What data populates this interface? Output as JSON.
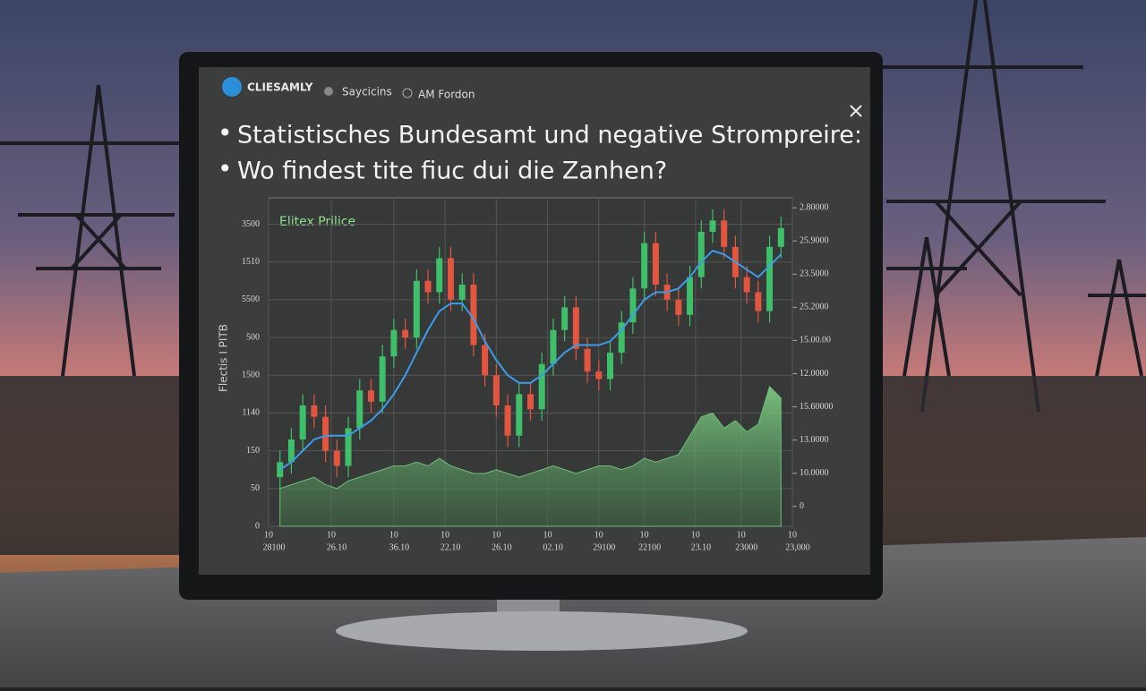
{
  "header": {
    "logo": "CLIESAMLY",
    "tabs": [
      "Saycicins",
      "AM Fordon"
    ],
    "title_lines": [
      "Statistisches Bundesamt und negative Strompreire:",
      "Wo findest tite fiuc dui die Zanhen?"
    ]
  },
  "chart_data": {
    "type": "candlestick",
    "legend": "Elitex Prilice",
    "y_label": "Flectis I PITB",
    "xlim": [
      0,
      46
    ],
    "xticks": [
      {
        "value": 0,
        "label": "10"
      },
      {
        "value": 5.5,
        "label": "10"
      },
      {
        "value": 11,
        "label": "10"
      },
      {
        "value": 15.5,
        "label": "10"
      },
      {
        "value": 20,
        "label": "10"
      },
      {
        "value": 24.5,
        "label": "10"
      },
      {
        "value": 29,
        "label": "10"
      },
      {
        "value": 33,
        "label": "10"
      },
      {
        "value": 37.5,
        "label": "10"
      },
      {
        "value": 41.5,
        "label": "10"
      },
      {
        "value": 46,
        "label": "10"
      }
    ],
    "xtick_sublabels": [
      "28100",
      "26.10",
      "36.10",
      "22.10",
      "26.10",
      "02.10",
      "29100",
      "22100",
      "23.10",
      "23000",
      "23,000"
    ],
    "ylim": [
      0,
      8.7
    ],
    "yticks": [
      {
        "value": 0,
        "label": "0"
      },
      {
        "value": 1,
        "label": "50"
      },
      {
        "value": 2,
        "label": "150"
      },
      {
        "value": 3,
        "label": "1140"
      },
      {
        "value": 4,
        "label": "1500"
      },
      {
        "value": 5,
        "label": "500"
      },
      {
        "value": 6,
        "label": "5500"
      },
      {
        "value": 7,
        "label": "1510"
      },
      {
        "value": 8,
        "label": "3500"
      }
    ],
    "y2lim": [
      -0.6,
      9.3
    ],
    "y2ticks": [
      {
        "value": 0,
        "label": "0"
      },
      {
        "value": 1,
        "label": "10.0000"
      },
      {
        "value": 2,
        "label": "13.0000"
      },
      {
        "value": 3,
        "label": "15.60000"
      },
      {
        "value": 4,
        "label": "12.0000"
      },
      {
        "value": 5,
        "label": "15.00.00"
      },
      {
        "value": 6,
        "label": "25.2000"
      },
      {
        "value": 7,
        "label": "23.5000"
      },
      {
        "value": 8,
        "label": "25.9000"
      },
      {
        "value": 9,
        "label": "2.80000"
      }
    ],
    "grid": true,
    "x": [
      1,
      2,
      3,
      4,
      5,
      6,
      7,
      8,
      9,
      10,
      11,
      12,
      13,
      14,
      15,
      16,
      17,
      18,
      19,
      20,
      21,
      22,
      23,
      24,
      25,
      26,
      27,
      28,
      29,
      30,
      31,
      32,
      33,
      34,
      35,
      36,
      37,
      38,
      39,
      40,
      41,
      42,
      43,
      44,
      45
    ],
    "open": [
      1.3,
      1.7,
      2.3,
      3.2,
      2.9,
      2.0,
      1.6,
      2.6,
      3.6,
      3.3,
      4.5,
      5.2,
      5.0,
      6.5,
      6.2,
      7.1,
      6.0,
      6.4,
      4.8,
      4.0,
      3.2,
      2.4,
      3.5,
      3.1,
      4.3,
      5.2,
      5.8,
      4.7,
      4.1,
      3.9,
      4.6,
      5.4,
      6.3,
      7.5,
      6.4,
      6.0,
      5.6,
      6.6,
      7.8,
      8.1,
      7.4,
      6.6,
      6.2,
      5.7,
      7.4
    ],
    "close": [
      1.7,
      2.3,
      3.2,
      2.9,
      2.0,
      1.6,
      2.6,
      3.6,
      3.3,
      4.5,
      5.2,
      5.0,
      6.5,
      6.2,
      7.1,
      6.0,
      6.4,
      4.8,
      4.0,
      3.2,
      2.4,
      3.5,
      3.1,
      4.3,
      5.2,
      5.8,
      4.7,
      4.1,
      3.9,
      4.6,
      5.4,
      6.3,
      7.5,
      6.4,
      6.0,
      5.6,
      6.6,
      7.8,
      8.1,
      7.4,
      6.6,
      6.2,
      5.7,
      7.4,
      7.9
    ],
    "high": [
      2.0,
      2.6,
      3.5,
      3.5,
      3.2,
      2.3,
      2.9,
      3.9,
      3.9,
      4.8,
      5.5,
      5.5,
      6.8,
      6.8,
      7.4,
      7.4,
      6.7,
      6.7,
      5.1,
      4.3,
      3.5,
      3.8,
      3.8,
      4.6,
      5.5,
      6.1,
      6.1,
      5.0,
      4.4,
      4.9,
      5.7,
      6.6,
      7.8,
      7.8,
      6.7,
      6.3,
      6.9,
      8.1,
      8.4,
      8.4,
      7.7,
      6.9,
      6.5,
      7.7,
      8.2
    ],
    "low": [
      1.0,
      1.4,
      2.0,
      2.6,
      1.7,
      1.3,
      1.3,
      2.3,
      3.0,
      3.0,
      4.2,
      4.7,
      4.7,
      5.9,
      5.9,
      5.7,
      5.7,
      4.5,
      3.7,
      2.9,
      2.1,
      2.1,
      2.8,
      2.8,
      4.0,
      4.9,
      4.4,
      3.8,
      3.6,
      3.6,
      4.3,
      5.1,
      6.0,
      6.1,
      5.7,
      5.3,
      5.3,
      6.3,
      7.5,
      7.1,
      6.3,
      5.9,
      5.4,
      5.4,
      7.1
    ],
    "series": [
      {
        "name": "Elitex Prilice",
        "color": "#3d9be9",
        "values": [
          1.5,
          1.7,
          2.0,
          2.3,
          2.4,
          2.4,
          2.4,
          2.6,
          2.8,
          3.1,
          3.5,
          4.0,
          4.6,
          5.2,
          5.7,
          5.9,
          5.9,
          5.5,
          4.9,
          4.4,
          4.0,
          3.8,
          3.8,
          4.0,
          4.3,
          4.6,
          4.8,
          4.8,
          4.8,
          4.9,
          5.2,
          5.6,
          6.0,
          6.2,
          6.2,
          6.3,
          6.6,
          7.0,
          7.3,
          7.2,
          7.0,
          6.8,
          6.6,
          6.9,
          7.2
        ]
      },
      {
        "color": "#6fbf7a",
        "values": [
          1.0,
          1.1,
          1.2,
          1.3,
          1.1,
          1.0,
          1.2,
          1.3,
          1.4,
          1.5,
          1.6,
          1.6,
          1.7,
          1.6,
          1.8,
          1.6,
          1.5,
          1.4,
          1.4,
          1.5,
          1.4,
          1.3,
          1.4,
          1.5,
          1.6,
          1.5,
          1.4,
          1.5,
          1.6,
          1.6,
          1.5,
          1.6,
          1.8,
          1.7,
          1.8,
          1.9,
          2.4,
          2.9,
          3.0,
          2.6,
          2.8,
          2.5,
          2.7,
          3.7,
          3.4
        ]
      }
    ],
    "up_color": "#3fbf6a",
    "down_color": "#e2553f"
  }
}
